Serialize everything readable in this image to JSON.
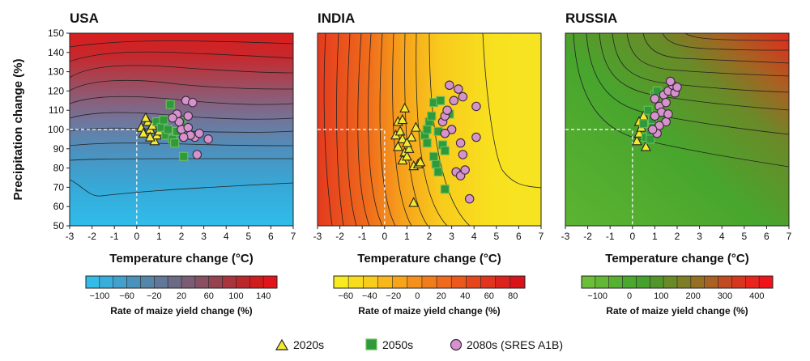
{
  "chart_data": [
    {
      "type": "contour-scatter",
      "title": "USA",
      "xlabel": "Temperature change (°C)",
      "ylabel": "Precipitation change (%)",
      "xlim": [
        -3,
        7
      ],
      "ylim": [
        50,
        150
      ],
      "xticks": [
        -3,
        -2,
        -1,
        0,
        1,
        2,
        3,
        4,
        5,
        6,
        7
      ],
      "yticks": [
        50,
        60,
        70,
        80,
        90,
        100,
        110,
        120,
        130,
        140,
        150
      ],
      "baseline": {
        "x": 0,
        "y": 100
      },
      "colorbar": {
        "title": "Rate of maize yield change (%)",
        "ticks": [
          "−100",
          "−60",
          "−20",
          "20",
          "60",
          "100",
          "140"
        ],
        "colors": [
          "#33bce8",
          "#3aaedb",
          "#42a0cc",
          "#4a92bb",
          "#5586aa",
          "#617898",
          "#6c6b86",
          "#7a5d74",
          "#885062",
          "#97424f",
          "#a8353d",
          "#bb282b",
          "#cf1c1c",
          "#e2141b"
        ]
      },
      "series": [
        {
          "name": "2020s",
          "points": [
            [
              0.2,
              101
            ],
            [
              0.3,
              98
            ],
            [
              0.5,
              104
            ],
            [
              0.6,
              100
            ],
            [
              0.8,
              94
            ],
            [
              0.9,
              97
            ],
            [
              0.4,
              106
            ],
            [
              0.7,
              102
            ],
            [
              1.0,
              99
            ],
            [
              0.6,
              96
            ]
          ]
        },
        {
          "name": "2050s",
          "points": [
            [
              0.9,
              104
            ],
            [
              1.1,
              101
            ],
            [
              1.3,
              97
            ],
            [
              1.5,
              113
            ],
            [
              1.6,
              95
            ],
            [
              1.8,
              99
            ],
            [
              2.0,
              104
            ],
            [
              1.7,
              93
            ],
            [
              2.1,
              86
            ],
            [
              1.4,
              100
            ],
            [
              1.2,
              105
            ]
          ]
        },
        {
          "name": "2080s (SRES A1B)",
          "points": [
            [
              1.8,
              108
            ],
            [
              2.0,
              100
            ],
            [
              2.2,
              115
            ],
            [
              2.5,
              114
            ],
            [
              2.3,
              101
            ],
            [
              2.6,
              96
            ],
            [
              2.8,
              98
            ],
            [
              3.2,
              95
            ],
            [
              2.7,
              87
            ],
            [
              2.4,
              97
            ],
            [
              1.9,
              104
            ],
            [
              2.1,
              96
            ],
            [
              1.6,
              106
            ],
            [
              2.3,
              107
            ]
          ]
        }
      ]
    },
    {
      "type": "contour-scatter",
      "title": "INDIA",
      "xlabel": "Temperature change (°C)",
      "xlim": [
        -3,
        7
      ],
      "ylim": [
        50,
        150
      ],
      "xticks": [
        -3,
        -2,
        -1,
        0,
        1,
        2,
        3,
        4,
        5,
        6,
        7
      ],
      "baseline": {
        "x": 0,
        "y": 100
      },
      "colorbar": {
        "title": "Rate of maize yield change (%)",
        "ticks": [
          "−60",
          "−40",
          "−20",
          "0",
          "20",
          "40",
          "60",
          "80"
        ],
        "colors": [
          "#f7ea20",
          "#f9dc1e",
          "#f9cc1c",
          "#f8b81b",
          "#f7a41b",
          "#f4901c",
          "#f17c1c",
          "#ee6a1c",
          "#ea581c",
          "#e6461c",
          "#e1341c",
          "#dc221c",
          "#d8141a"
        ]
      },
      "series": [
        {
          "name": "2020s",
          "points": [
            [
              0.6,
              104
            ],
            [
              0.8,
              105
            ],
            [
              0.9,
              111
            ],
            [
              0.5,
              97
            ],
            [
              0.7,
              99
            ],
            [
              0.8,
              95
            ],
            [
              0.6,
              91
            ],
            [
              0.9,
              88
            ],
            [
              0.8,
              84
            ],
            [
              1.0,
              86
            ],
            [
              1.1,
              90
            ],
            [
              1.2,
              96
            ],
            [
              1.3,
              81
            ],
            [
              1.5,
              82
            ],
            [
              1.4,
              101
            ],
            [
              1.6,
              83
            ],
            [
              1.3,
              62
            ],
            [
              1.0,
              93
            ]
          ]
        },
        {
          "name": "2050s",
          "points": [
            [
              1.8,
              97
            ],
            [
              1.9,
              100
            ],
            [
              2.0,
              104
            ],
            [
              2.1,
              107
            ],
            [
              2.2,
              114
            ],
            [
              2.5,
              115
            ],
            [
              2.4,
              99
            ],
            [
              2.6,
              92
            ],
            [
              2.7,
              89
            ],
            [
              2.9,
              108
            ],
            [
              2.3,
              82
            ],
            [
              2.4,
              78
            ],
            [
              2.2,
              86
            ],
            [
              2.7,
              69
            ],
            [
              1.9,
              93
            ]
          ]
        },
        {
          "name": "2080s (SRES A1B)",
          "points": [
            [
              2.6,
              104
            ],
            [
              2.7,
              107
            ],
            [
              2.9,
              123
            ],
            [
              3.1,
              115
            ],
            [
              3.3,
              121
            ],
            [
              3.5,
              117
            ],
            [
              2.8,
              110
            ],
            [
              3.0,
              100
            ],
            [
              2.7,
              98
            ],
            [
              3.4,
              93
            ],
            [
              3.5,
              87
            ],
            [
              3.2,
              78
            ],
            [
              3.4,
              76
            ],
            [
              3.6,
              79
            ],
            [
              4.1,
              112
            ],
            [
              4.1,
              96
            ],
            [
              3.8,
              64
            ]
          ]
        }
      ]
    },
    {
      "type": "contour-scatter",
      "title": "RUSSIA",
      "xlabel": "Temperature change (°C)",
      "xlim": [
        -3,
        7
      ],
      "ylim": [
        50,
        150
      ],
      "xticks": [
        -3,
        -2,
        -1,
        0,
        1,
        2,
        3,
        4,
        5,
        6,
        7
      ],
      "baseline": {
        "x": 0,
        "y": 100
      },
      "colorbar": {
        "title": "Rate of maize yield change (%)",
        "ticks": [
          "−100",
          "0",
          "100",
          "200",
          "300",
          "400"
        ],
        "colors": [
          "#6cbd3a",
          "#62b735",
          "#56b031",
          "#4aa82e",
          "#45a02c",
          "#52952a",
          "#6a8a28",
          "#7f7d26",
          "#957024",
          "#aa6022",
          "#c14b20",
          "#d6361e",
          "#e8241c",
          "#f0141a"
        ]
      },
      "series": [
        {
          "name": "2020s",
          "points": [
            [
              0.2,
              94
            ],
            [
              0.3,
              98
            ],
            [
              0.4,
              104
            ],
            [
              0.5,
              107
            ],
            [
              0.4,
              101
            ],
            [
              0.6,
              91
            ],
            [
              0.3,
              104
            ]
          ]
        },
        {
          "name": "2050s",
          "points": [
            [
              0.5,
              103
            ],
            [
              0.6,
              96
            ],
            [
              0.8,
              99
            ],
            [
              0.9,
              105
            ],
            [
              0.7,
              110
            ],
            [
              1.0,
              118
            ],
            [
              1.1,
              120
            ],
            [
              0.8,
              95
            ],
            [
              0.9,
              101
            ]
          ]
        },
        {
          "name": "2080s (SRES A1B)",
          "points": [
            [
              1.0,
              116
            ],
            [
              1.2,
              112
            ],
            [
              1.3,
              109
            ],
            [
              1.5,
              104
            ],
            [
              1.0,
              107
            ],
            [
              1.4,
              118
            ],
            [
              1.6,
              120
            ],
            [
              1.8,
              123
            ],
            [
              1.7,
              125
            ],
            [
              1.2,
              102
            ],
            [
              1.6,
              108
            ],
            [
              1.9,
              119
            ],
            [
              2.0,
              122
            ],
            [
              1.5,
              114
            ],
            [
              1.1,
              98
            ],
            [
              0.9,
              100
            ]
          ]
        }
      ]
    }
  ],
  "legend": {
    "items": [
      {
        "label": "2020s",
        "marker": "triangle",
        "fill": "#f5e830"
      },
      {
        "label": "2050s",
        "marker": "square",
        "fill": "#2e9a3c"
      },
      {
        "label": "2080s (SRES A1B)",
        "marker": "circle",
        "fill": "#d592cc"
      }
    ]
  },
  "marker_style": {
    "triangle_fill": "#f5e830",
    "square_fill": "#2e9a3c",
    "square_stroke": "#6fbf5a",
    "circle_fill": "#d592cc",
    "circle_stroke": "#3a2a3a"
  }
}
